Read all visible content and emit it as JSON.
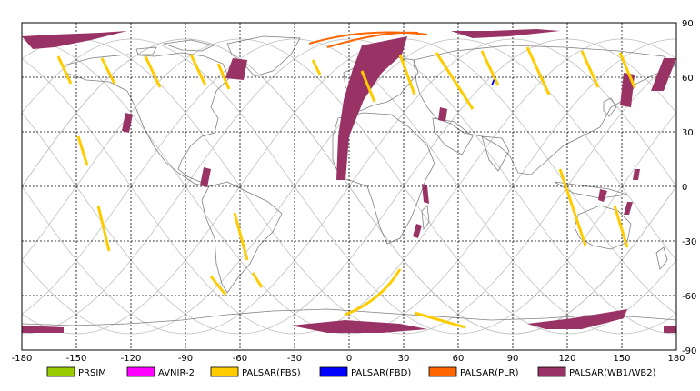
{
  "map": {
    "lon_range": [
      -180,
      180
    ],
    "lat_range": [
      -90,
      90
    ],
    "x_ticks": [
      "-180",
      "-150",
      "-120",
      "-90",
      "-60",
      "-30",
      "0",
      "30",
      "60",
      "90",
      "120",
      "150",
      "180"
    ],
    "y_ticks": [
      "90",
      "60",
      "30",
      "0",
      "-30",
      "-60",
      "-90"
    ],
    "grid": "dashed"
  },
  "legend": {
    "items": [
      {
        "label": "PRSIM",
        "color": "#99cc00"
      },
      {
        "label": "AVNIR-2",
        "color": "#ff00ff"
      },
      {
        "label": "PALSAR(FBS)",
        "color": "#ffcc00"
      },
      {
        "label": "PALSAR(FBD)",
        "color": "#0000ff"
      },
      {
        "label": "PALSAR(PLR)",
        "color": "#ff6600"
      },
      {
        "label": "PALSAR(WB1/WB2)",
        "color": "#993366"
      }
    ]
  },
  "colors": {
    "coastline": "#808080",
    "orbit_track": "#c0c0c0",
    "grid": "#000000"
  }
}
